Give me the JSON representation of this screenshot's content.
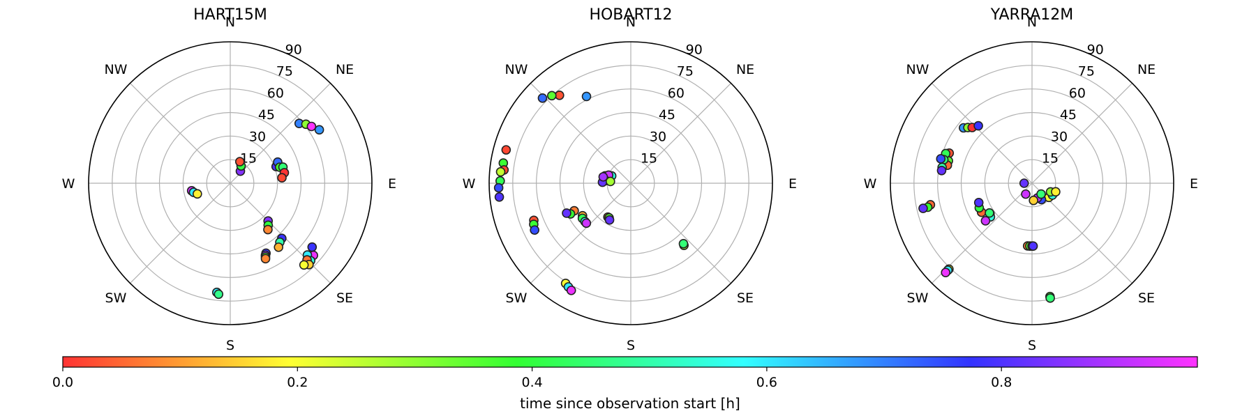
{
  "colorbar": {
    "label": "time since observation start [h]",
    "ticks": [
      0.0,
      0.2,
      0.4,
      0.6,
      0.8
    ],
    "tick_labels": [
      "0.0",
      "0.2",
      "0.4",
      "0.6",
      "0.8"
    ],
    "range": [
      0,
      0.967
    ],
    "colormap": "hue"
  },
  "chart_data": [
    {
      "type": "scatter",
      "projection": "polar",
      "title": "HART15M",
      "r_tick_labels": [
        "15",
        "30",
        "45",
        "60",
        "75",
        "90"
      ],
      "direction_labels": [
        "E",
        "NE",
        "N",
        "NW",
        "W",
        "SW",
        "S",
        "SE"
      ],
      "grid": true,
      "points": [
        {
          "az": 50,
          "el": 10,
          "t": 0.85
        },
        {
          "az": 58,
          "el": 13,
          "t": 0.4
        },
        {
          "az": 66,
          "el": 15,
          "t": 0.03
        },
        {
          "az": 20,
          "el": 31,
          "t": 0.8
        },
        {
          "az": 24,
          "el": 33,
          "t": 0.72
        },
        {
          "az": 18,
          "el": 33,
          "t": 0.37
        },
        {
          "az": 17,
          "el": 35,
          "t": 0.45
        },
        {
          "az": 11,
          "el": 35,
          "t": 0.0
        },
        {
          "az": 6,
          "el": 33,
          "t": 0.02
        },
        {
          "az": 41,
          "el": 58,
          "t": 0.7
        },
        {
          "az": 38,
          "el": 61,
          "t": 0.3
        },
        {
          "az": 35,
          "el": 63,
          "t": 0.98
        },
        {
          "az": 31,
          "el": 66,
          "t": 0.68
        },
        {
          "az": -45,
          "el": 34,
          "t": 0.85
        },
        {
          "az": -48,
          "el": 36,
          "t": 0.4
        },
        {
          "az": -51,
          "el": 38,
          "t": 0.08
        },
        {
          "az": -169,
          "el": 25,
          "t": 0.92
        },
        {
          "az": -166,
          "el": 24,
          "t": 0.6
        },
        {
          "az": -162,
          "el": 22,
          "t": 0.18
        },
        {
          "az": -47,
          "el": 48,
          "t": 0.78
        },
        {
          "az": -50,
          "el": 49,
          "t": 0.5
        },
        {
          "az": -53,
          "el": 51,
          "t": 0.12
        },
        {
          "az": -63,
          "el": 50,
          "t": 0.78
        },
        {
          "az": -64,
          "el": 51,
          "t": 0.88
        },
        {
          "az": -64.5,
          "el": 52,
          "t": 0.35
        },
        {
          "az": -65,
          "el": 53,
          "t": 0.08
        },
        {
          "az": -38,
          "el": 66,
          "t": 0.78
        },
        {
          "az": -41,
          "el": 70,
          "t": 0.95
        },
        {
          "az": -43,
          "el": 67,
          "t": 0.6
        },
        {
          "az": -44,
          "el": 71,
          "t": 0.55
        },
        {
          "az": -45,
          "el": 69,
          "t": 0.06
        },
        {
          "az": -46,
          "el": 72,
          "t": 0.15
        },
        {
          "az": -48,
          "el": 70,
          "t": 0.2
        },
        {
          "az": -97,
          "el": 70,
          "t": 0.6
        },
        {
          "az": -96,
          "el": 71,
          "t": 0.47
        }
      ]
    },
    {
      "type": "scatter",
      "projection": "polar",
      "title": "HOBART12",
      "r_tick_labels": [
        "15",
        "30",
        "45",
        "60",
        "75",
        "90"
      ],
      "direction_labels": [
        "E",
        "NE",
        "N",
        "NW",
        "W",
        "SW",
        "S",
        "SE"
      ],
      "grid": true,
      "points": [
        {
          "az": 117,
          "el": 62,
          "t": 0.68
        },
        {
          "az": 129,
          "el": 72,
          "t": 0.03
        },
        {
          "az": 132,
          "el": 75,
          "t": 0.35
        },
        {
          "az": 136,
          "el": 78,
          "t": 0.72
        },
        {
          "az": 165,
          "el": 82,
          "t": 0.02
        },
        {
          "az": 171,
          "el": 82,
          "t": 0.38
        },
        {
          "az": 174,
          "el": 81,
          "t": 0.02
        },
        {
          "az": 175,
          "el": 83,
          "t": 0.25
        },
        {
          "az": 179,
          "el": 83,
          "t": 0.42
        },
        {
          "az": 182,
          "el": 84,
          "t": 0.75
        },
        {
          "az": 186,
          "el": 84,
          "t": 0.8
        },
        {
          "az": 164,
          "el": 17,
          "t": 0.1
        },
        {
          "az": 159,
          "el": 13,
          "t": 0.55
        },
        {
          "az": 160,
          "el": 15,
          "t": 0.92
        },
        {
          "az": 174,
          "el": 16,
          "t": 0.55
        },
        {
          "az": 178,
          "el": 18,
          "t": 0.82
        },
        {
          "az": 175,
          "el": 13,
          "t": 0.28
        },
        {
          "az": 167,
          "el": 18,
          "t": 0.88
        },
        {
          "az": -154,
          "el": 40,
          "t": 0.07
        },
        {
          "az": -153,
          "el": 43,
          "t": 0.38
        },
        {
          "az": -155,
          "el": 45,
          "t": 0.82
        },
        {
          "az": -146,
          "el": 37,
          "t": 0.12
        },
        {
          "az": -144,
          "el": 38,
          "t": 0.42
        },
        {
          "az": -140,
          "el": 38,
          "t": 0.58
        },
        {
          "az": -138,
          "el": 38,
          "t": 0.92
        },
        {
          "az": -124,
          "el": 26,
          "t": 0.1
        },
        {
          "az": -122,
          "el": 26,
          "t": 0.35
        },
        {
          "az": -120,
          "el": 27,
          "t": 0.82
        },
        {
          "az": -159,
          "el": 66,
          "t": 0.03
        },
        {
          "az": -157,
          "el": 67,
          "t": 0.38
        },
        {
          "az": -154,
          "el": 68,
          "t": 0.75
        },
        {
          "az": -123,
          "el": 76,
          "t": 0.2
        },
        {
          "az": -121,
          "el": 77,
          "t": 0.6
        },
        {
          "az": -119,
          "el": 78,
          "t": 0.95
        },
        {
          "az": -49.5,
          "el": 52,
          "t": 0.28
        },
        {
          "az": -49,
          "el": 51,
          "t": 0.45
        }
      ]
    },
    {
      "type": "scatter",
      "projection": "polar",
      "title": "YARRA12M",
      "r_tick_labels": [
        "15",
        "30",
        "45",
        "60",
        "75",
        "90"
      ],
      "direction_labels": [
        "E",
        "NE",
        "N",
        "NW",
        "W",
        "SW",
        "S",
        "SE"
      ],
      "grid": true,
      "points": [
        {
          "az": 141,
          "el": 56,
          "t": 0.68
        },
        {
          "az": 139,
          "el": 54,
          "t": 0.3
        },
        {
          "az": 137,
          "el": 52,
          "t": 0.0
        },
        {
          "az": 133,
          "el": 50,
          "t": 0.78
        },
        {
          "az": 160,
          "el": 56,
          "t": 0.03
        },
        {
          "az": 165,
          "el": 55,
          "t": 0.35
        },
        {
          "az": 168,
          "el": 55,
          "t": 0.05
        },
        {
          "az": 161,
          "el": 58,
          "t": 0.42
        },
        {
          "az": 165,
          "el": 58,
          "t": 0.45
        },
        {
          "az": 165,
          "el": 60,
          "t": 0.75
        },
        {
          "az": 170,
          "el": 58,
          "t": 0.5
        },
        {
          "az": 172,
          "el": 58,
          "t": 0.82
        },
        {
          "az": -168,
          "el": 66,
          "t": 0.05
        },
        {
          "az": -167,
          "el": 68,
          "t": 0.38
        },
        {
          "az": -167,
          "el": 71,
          "t": 0.82
        },
        {
          "az": -150,
          "el": 37,
          "t": 0.05
        },
        {
          "az": -155,
          "el": 37,
          "t": 0.4
        },
        {
          "az": -160,
          "el": 36,
          "t": 0.8
        },
        {
          "az": -144,
          "el": 33,
          "t": 0.15
        },
        {
          "az": -141,
          "el": 34,
          "t": 0.55
        },
        {
          "az": -145,
          "el": 33,
          "t": 0.45
        },
        {
          "az": -141,
          "el": 38,
          "t": 0.92
        },
        {
          "az": -94,
          "el": 40,
          "t": 0.08
        },
        {
          "az": -92,
          "el": 40,
          "t": 0.35
        },
        {
          "az": -90,
          "el": 40,
          "t": 0.65
        },
        {
          "az": -89,
          "el": 40,
          "t": 0.8
        },
        {
          "az": -180,
          "el": 5,
          "t": 0.82
        },
        {
          "az": -40,
          "el": 14,
          "t": 0.2
        },
        {
          "az": -30,
          "el": 15,
          "t": 0.55
        },
        {
          "az": -25,
          "el": 13,
          "t": 0.3
        },
        {
          "az": -60,
          "el": 12,
          "t": 0.75
        },
        {
          "az": -70,
          "el": 10,
          "t": 0.9
        },
        {
          "az": -85,
          "el": 11,
          "t": 0.15
        },
        {
          "az": -50,
          "el": 9,
          "t": 0.45
        },
        {
          "az": -20,
          "el": 16,
          "t": 0.18
        },
        {
          "az": -120,
          "el": 8,
          "t": 0.92
        },
        {
          "az": -134,
          "el": 76,
          "t": 0.2
        },
        {
          "az": -134,
          "el": 77,
          "t": 0.6
        },
        {
          "az": -134,
          "el": 79,
          "t": 0.95
        },
        {
          "az": -81,
          "el": 73,
          "t": 0.35
        },
        {
          "az": -81,
          "el": 74,
          "t": 0.45
        }
      ]
    }
  ]
}
